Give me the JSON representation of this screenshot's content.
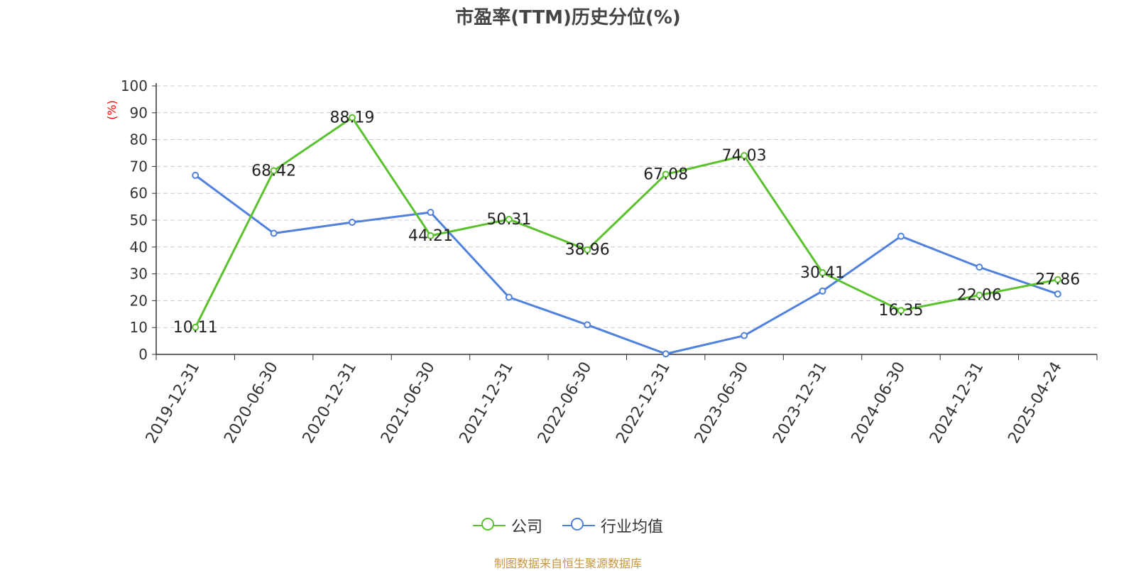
{
  "title": "市盈率(TTM)历史分位(%)",
  "footer": "制图数据来自恒生聚源数据库",
  "chart_data": {
    "type": "line",
    "title": "市盈率(TTM)历史分位(%)",
    "ylabel": "(%)",
    "ylim": [
      0,
      100
    ],
    "yticks": [
      0,
      10,
      20,
      30,
      40,
      50,
      60,
      70,
      80,
      90,
      100
    ],
    "grid": true,
    "legend_position": "bottom",
    "categories": [
      "2019-12-31",
      "2020-06-30",
      "2020-12-31",
      "2021-06-30",
      "2021-12-31",
      "2022-06-30",
      "2022-12-31",
      "2023-06-30",
      "2023-12-31",
      "2024-06-30",
      "2024-12-31",
      "2025-04-24"
    ],
    "series": [
      {
        "name": "公司",
        "color": "#5cc12e",
        "values": [
          10.11,
          68.42,
          88.19,
          44.21,
          50.31,
          38.96,
          67.08,
          74.03,
          30.41,
          16.35,
          22.06,
          27.86
        ],
        "labels": [
          "10.11",
          "68.42",
          "88.19",
          "44.21",
          "50.31",
          "38.96",
          "67.08",
          "74.03",
          "30.41",
          "16.35",
          "22.06",
          "27.86"
        ]
      },
      {
        "name": "行业均值",
        "color": "#4f81dd",
        "values": [
          66.7,
          45.1,
          49.2,
          52.9,
          21.3,
          11.0,
          0.2,
          7.0,
          23.6,
          44.0,
          32.5,
          22.5
        ]
      }
    ]
  }
}
